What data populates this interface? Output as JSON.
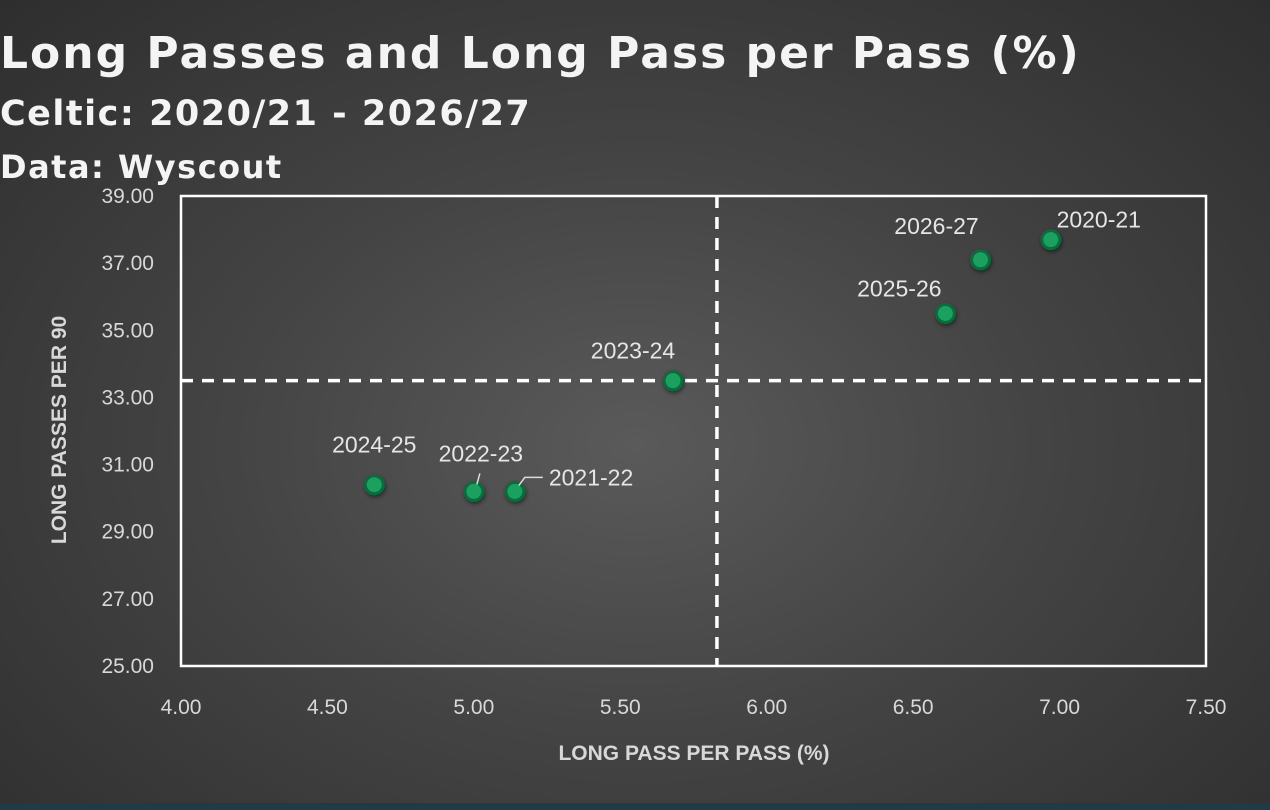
{
  "title": "Long Passes and Long Pass per Pass (%)",
  "subtitle": "Celtic: 2020/21 - 2026/27",
  "source": "Data: Wyscout",
  "colors": {
    "point_fill": "#1aa05f",
    "point_stroke": "#0e6a3e",
    "reference_line": "#ffffff",
    "plot_border": "#ffffff"
  },
  "chart_data": {
    "type": "scatter",
    "title": "Long Passes and Long Pass per Pass (%)",
    "xlabel": "LONG PASS PER PASS (%)",
    "ylabel": "LONG PASSES PER 90",
    "xlim": [
      4.0,
      7.5
    ],
    "ylim": [
      25.0,
      39.0
    ],
    "x_ticks": [
      "4.00",
      "4.50",
      "5.00",
      "5.50",
      "6.00",
      "6.50",
      "7.00",
      "7.50"
    ],
    "y_ticks": [
      "25.00",
      "27.00",
      "29.00",
      "31.00",
      "33.00",
      "35.00",
      "37.00",
      "39.00"
    ],
    "grid": false,
    "reference_lines": {
      "x": 5.83,
      "y": 33.5,
      "style": "dashed"
    },
    "points": [
      {
        "label": "2020-21",
        "x": 6.97,
        "y": 37.7
      },
      {
        "label": "2021-22",
        "x": 5.14,
        "y": 30.2
      },
      {
        "label": "2022-23",
        "x": 5.0,
        "y": 30.2
      },
      {
        "label": "2023-24",
        "x": 5.68,
        "y": 33.5
      },
      {
        "label": "2024-25",
        "x": 4.66,
        "y": 30.4
      },
      {
        "label": "2025-26",
        "x": 6.61,
        "y": 35.5
      },
      {
        "label": "2026-27",
        "x": 6.73,
        "y": 37.1
      }
    ]
  }
}
